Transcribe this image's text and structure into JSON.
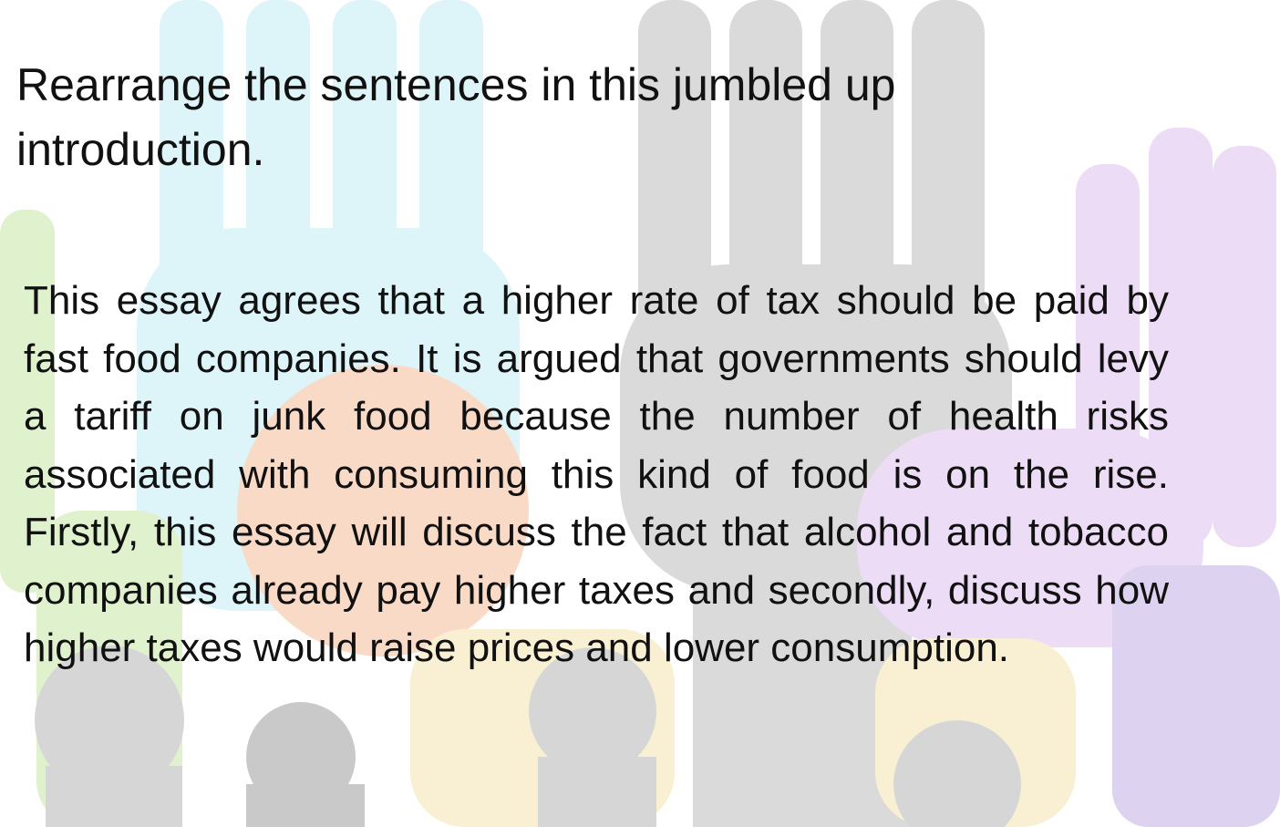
{
  "slide": {
    "title": "Rearrange the sentences in this jumbled up introduction.",
    "paragraph": "This essay agrees that a higher rate of tax should be paid by fast food companies. It is argued that governments should levy a tariff on junk food because the number of health risks associated with consuming this kind of food is on the rise. Firstly, this essay will discuss the fact that alcohol and tobacco companies already pay higher taxes and secondly, discuss how higher taxes would raise prices and lower consumption."
  },
  "colors": {
    "text": "#111111",
    "background": "#ffffff",
    "hands_cyan": "#c9eef6",
    "hands_gray": "#c4c4c4",
    "hands_green": "#cde8b0",
    "hands_orange": "#f6c3a5",
    "hands_yellow": "#f6e7b8",
    "hands_purple": "#e3c7ef",
    "hands_violet": "#c9b8e8"
  }
}
